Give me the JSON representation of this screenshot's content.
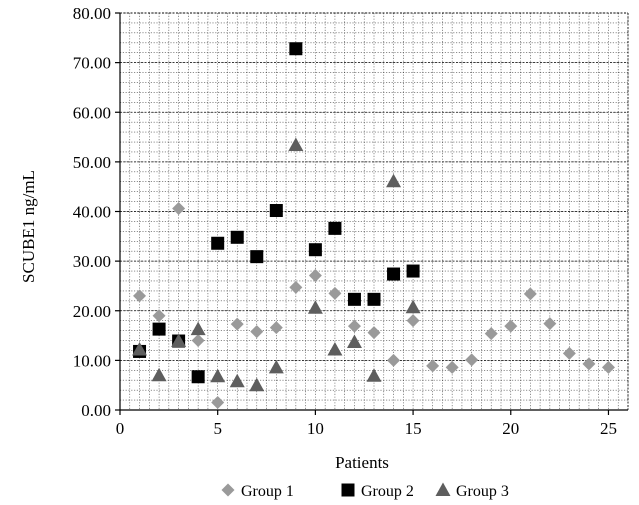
{
  "chart_data": {
    "type": "scatter",
    "title": "",
    "xlabel": "Patients",
    "ylabel": "SCUBE1 ng/mL",
    "xlim": [
      0,
      26
    ],
    "ylim": [
      0,
      80
    ],
    "x_ticks": [
      0,
      5,
      10,
      15,
      20,
      25
    ],
    "x_tick_labels": [
      "0",
      "5",
      "10",
      "15",
      "20",
      "25"
    ],
    "y_ticks": [
      0,
      10,
      20,
      30,
      40,
      50,
      60,
      70,
      80
    ],
    "y_tick_labels": [
      "0.00",
      "10.00",
      "20.00",
      "30.00",
      "40.00",
      "50.00",
      "60.00",
      "70.00",
      "80.00"
    ],
    "grid": true,
    "legend_position": "bottom",
    "series": [
      {
        "name": "Group 1",
        "marker": "diamond",
        "color": "#9a9a9a",
        "points": [
          {
            "x": 1,
            "y": 23.0
          },
          {
            "x": 2,
            "y": 19.0
          },
          {
            "x": 3,
            "y": 40.6
          },
          {
            "x": 4,
            "y": 14.0
          },
          {
            "x": 5,
            "y": 1.5
          },
          {
            "x": 6,
            "y": 17.3
          },
          {
            "x": 7,
            "y": 15.8
          },
          {
            "x": 8,
            "y": 16.6
          },
          {
            "x": 9,
            "y": 24.7
          },
          {
            "x": 10,
            "y": 27.1
          },
          {
            "x": 11,
            "y": 23.5
          },
          {
            "x": 12,
            "y": 16.9
          },
          {
            "x": 13,
            "y": 15.6
          },
          {
            "x": 14,
            "y": 10.0
          },
          {
            "x": 15,
            "y": 18.0
          },
          {
            "x": 16,
            "y": 8.9
          },
          {
            "x": 17,
            "y": 8.6
          },
          {
            "x": 18,
            "y": 10.1
          },
          {
            "x": 19,
            "y": 15.4
          },
          {
            "x": 20,
            "y": 16.9
          },
          {
            "x": 21,
            "y": 23.4
          },
          {
            "x": 22,
            "y": 17.4
          },
          {
            "x": 23,
            "y": 11.4
          },
          {
            "x": 24,
            "y": 9.3
          },
          {
            "x": 25,
            "y": 8.6
          }
        ]
      },
      {
        "name": "Group 2",
        "marker": "square",
        "color": "#000000",
        "points": [
          {
            "x": 1,
            "y": 11.8
          },
          {
            "x": 2,
            "y": 16.3
          },
          {
            "x": 3,
            "y": 13.9
          },
          {
            "x": 4,
            "y": 6.7
          },
          {
            "x": 5,
            "y": 33.6
          },
          {
            "x": 6,
            "y": 34.8
          },
          {
            "x": 7,
            "y": 30.9
          },
          {
            "x": 8,
            "y": 40.2
          },
          {
            "x": 9,
            "y": 72.8
          },
          {
            "x": 10,
            "y": 32.3
          },
          {
            "x": 11,
            "y": 36.6
          },
          {
            "x": 12,
            "y": 22.3
          },
          {
            "x": 13,
            "y": 22.3
          },
          {
            "x": 14,
            "y": 27.4
          },
          {
            "x": 15,
            "y": 28.0
          }
        ]
      },
      {
        "name": "Group 3",
        "marker": "triangle",
        "color": "#5e5e5e",
        "points": [
          {
            "x": 1,
            "y": 12.2
          },
          {
            "x": 2,
            "y": 7.0
          },
          {
            "x": 3,
            "y": 13.9
          },
          {
            "x": 4,
            "y": 16.3
          },
          {
            "x": 5,
            "y": 6.8
          },
          {
            "x": 6,
            "y": 5.8
          },
          {
            "x": 7,
            "y": 5.0
          },
          {
            "x": 8,
            "y": 8.6
          },
          {
            "x": 9,
            "y": 53.4
          },
          {
            "x": 10,
            "y": 20.6
          },
          {
            "x": 11,
            "y": 12.2
          },
          {
            "x": 12,
            "y": 13.7
          },
          {
            "x": 13,
            "y": 6.9
          },
          {
            "x": 14,
            "y": 46.1
          },
          {
            "x": 15,
            "y": 20.7
          }
        ]
      }
    ]
  }
}
